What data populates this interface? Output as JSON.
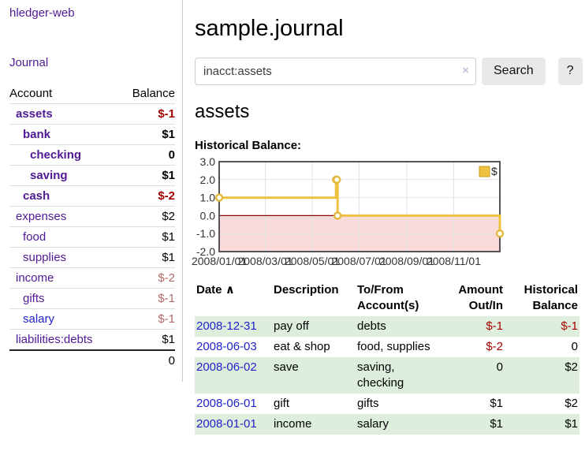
{
  "sidebar": {
    "app_title": "hledger-web",
    "journal_link": "Journal",
    "accounts_table": {
      "account_header": "Account",
      "balance_header": "Balance",
      "rows": [
        {
          "name": "assets",
          "balance": "$-1",
          "depth": 1,
          "bold": true,
          "neg": "strong",
          "blue": false
        },
        {
          "name": "bank",
          "balance": "$1",
          "depth": 2,
          "bold": true,
          "neg": "",
          "blue": false
        },
        {
          "name": "checking",
          "balance": "0",
          "depth": 3,
          "bold": true,
          "neg": "",
          "blue": false
        },
        {
          "name": "saving",
          "balance": "$1",
          "depth": 3,
          "bold": true,
          "neg": "",
          "blue": false
        },
        {
          "name": "cash",
          "balance": "$-2",
          "depth": 2,
          "bold": true,
          "neg": "strong",
          "blue": false
        },
        {
          "name": "expenses",
          "balance": "$2",
          "depth": 1,
          "bold": false,
          "neg": "",
          "blue": false
        },
        {
          "name": "food",
          "balance": "$1",
          "depth": 2,
          "bold": false,
          "neg": "",
          "blue": false
        },
        {
          "name": "supplies",
          "balance": "$1",
          "depth": 2,
          "bold": false,
          "neg": "",
          "blue": false
        },
        {
          "name": "income",
          "balance": "$-2",
          "depth": 1,
          "bold": false,
          "neg": "soft",
          "blue": false
        },
        {
          "name": "gifts",
          "balance": "$-1",
          "depth": 2,
          "bold": false,
          "neg": "soft",
          "blue": false
        },
        {
          "name": "salary",
          "balance": "$-1",
          "depth": 2,
          "bold": false,
          "neg": "soft",
          "blue": true
        },
        {
          "name": "liabilities:debts",
          "balance": "$1",
          "depth": 1,
          "bold": false,
          "neg": "",
          "blue": false
        }
      ],
      "total": "0"
    }
  },
  "main": {
    "title": "sample.journal",
    "search": {
      "value": "inacct:assets",
      "clear_icon": "×",
      "button_label": "Search",
      "help_label": "?"
    },
    "account_heading": "assets",
    "chart_label": "Historical Balance:"
  },
  "chart_data": {
    "type": "line",
    "subtype": "step",
    "title": "Historical Balance",
    "xlabel": "",
    "ylabel": "",
    "xrange": [
      "2008-01-01",
      "2008-12-31"
    ],
    "ylim": [
      -2,
      3
    ],
    "yticks": [
      "3.0",
      "2.0",
      "1.0",
      "0.0",
      "-1.0",
      "-2.0"
    ],
    "xticks": [
      "2008/01/01",
      "2008/03/01",
      "2008/05/01",
      "2008/07/01",
      "2008/09/01",
      "2008/11/01"
    ],
    "grid": true,
    "legend_position": "top-right",
    "series": [
      {
        "name": "$",
        "color": "#edc240",
        "marker_stroke": "#e4b93b",
        "points": [
          {
            "date": "2008-01-01",
            "value": 1
          },
          {
            "date": "2008-06-01",
            "value": 2
          },
          {
            "date": "2008-06-02",
            "value": 2
          },
          {
            "date": "2008-06-03",
            "value": 0
          },
          {
            "date": "2008-12-31",
            "value": -1
          }
        ]
      }
    ],
    "negative_region_color": "#f9dbdb",
    "zero_line_color": "#8b0000",
    "plot_border_color": "#545454",
    "gridline_color": "#e4e4e4"
  },
  "transactions_table": {
    "headers": {
      "date": "Date",
      "sort_glyph": "∧",
      "description": "Description",
      "accounts": "To/From Account(s)",
      "amount": "Amount Out/In",
      "balance": "Historical Balance"
    },
    "rows": [
      {
        "date": "2008-12-31",
        "description": "pay off",
        "accounts": "debts",
        "amount": "$-1",
        "balance": "$-1",
        "amount_neg": true,
        "balance_neg": true
      },
      {
        "date": "2008-06-03",
        "description": "eat & shop",
        "accounts": "food, supplies",
        "amount": "$-2",
        "balance": "0",
        "amount_neg": true,
        "balance_neg": false
      },
      {
        "date": "2008-06-02",
        "description": "save",
        "accounts": "saving, checking",
        "amount": "0",
        "balance": "$2",
        "amount_neg": false,
        "balance_neg": false
      },
      {
        "date": "2008-06-01",
        "description": "gift",
        "accounts": "gifts",
        "amount": "$1",
        "balance": "$2",
        "amount_neg": false,
        "balance_neg": false
      },
      {
        "date": "2008-01-01",
        "description": "income",
        "accounts": "salary",
        "amount": "$1",
        "balance": "$1",
        "amount_neg": false,
        "balance_neg": false
      }
    ]
  }
}
